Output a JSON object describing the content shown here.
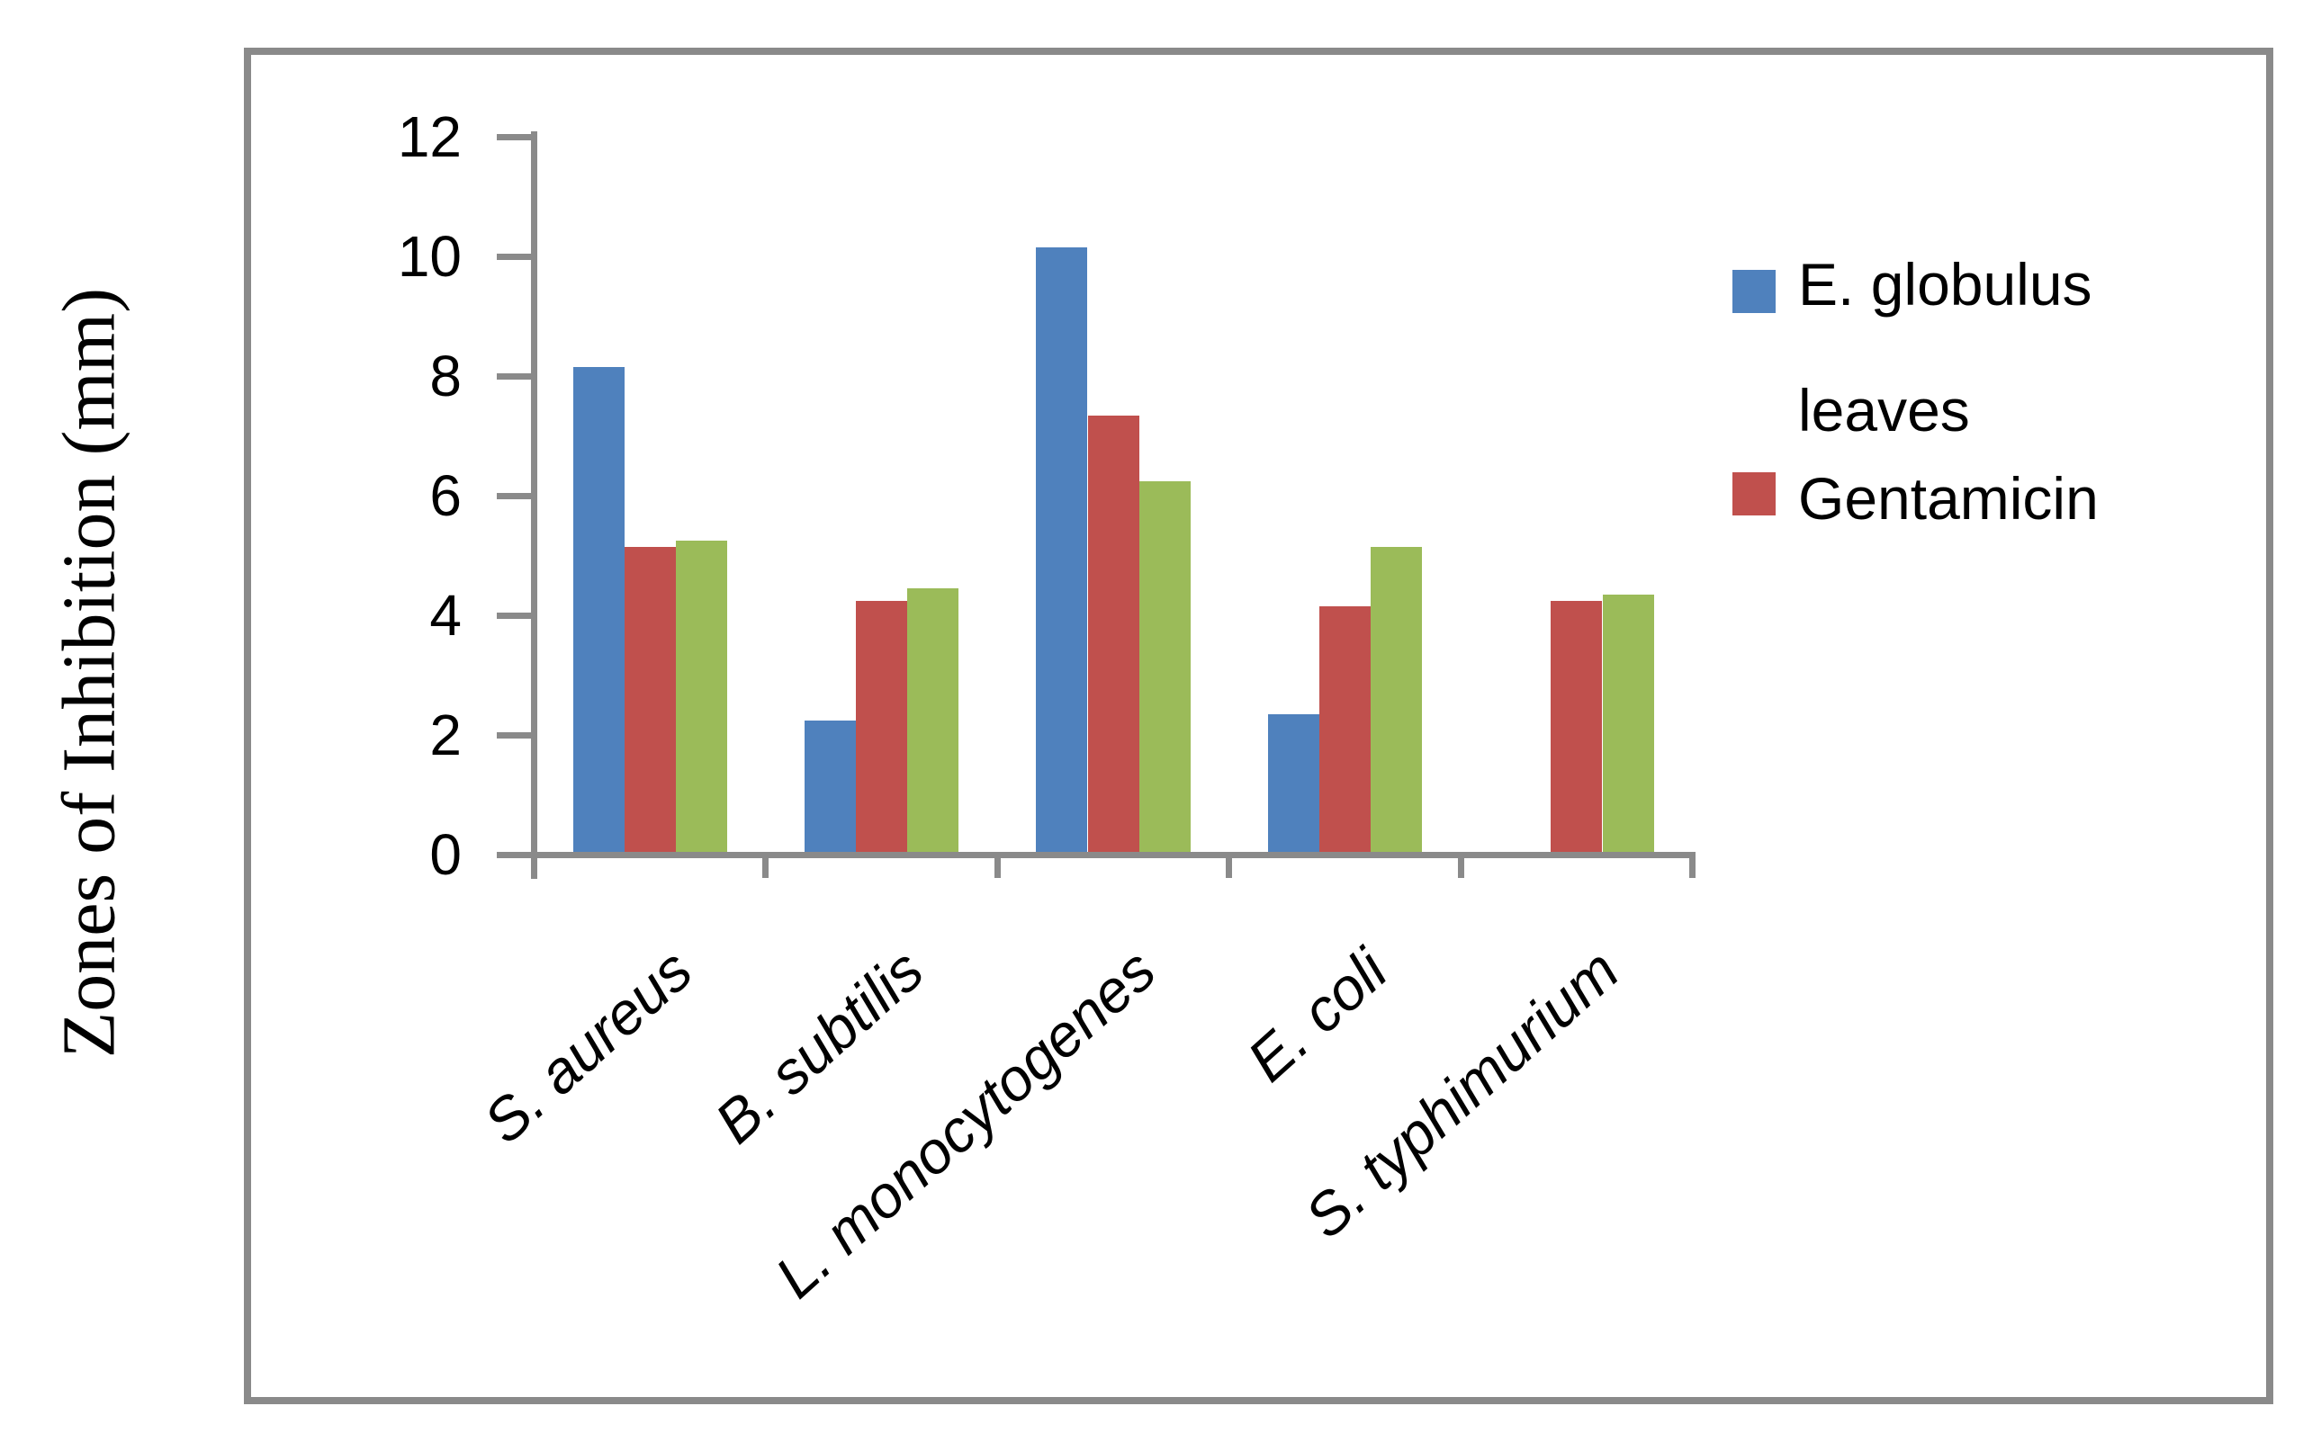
{
  "chart_data": {
    "type": "bar",
    "title": "",
    "xlabel": "",
    "ylabel": "Zones of Inhibition (mm)",
    "ylim": [
      0,
      12
    ],
    "ytick_step": 2,
    "yticks": [
      "12",
      "10",
      "8",
      "6",
      "4",
      "2",
      "0"
    ],
    "ytick_values": [
      12,
      10,
      8,
      6,
      4,
      2,
      0
    ],
    "grid": false,
    "legend_position": "right",
    "categories": [
      "S. aureus",
      "B. subtilis",
      "L. monocytogenes",
      "E. coli",
      "S. typhimurium"
    ],
    "series": [
      {
        "name": "E. globulus leaves",
        "color": "#4F81BD",
        "values": [
          8.1,
          2.2,
          10.1,
          2.3,
          0
        ]
      },
      {
        "name": "Gentamicin",
        "color": "#C0504D",
        "values": [
          5.1,
          4.2,
          7.3,
          4.1,
          4.2
        ]
      },
      {
        "name": "",
        "color": "#9BBB59",
        "values": [
          5.2,
          4.4,
          6.2,
          5.1,
          4.3
        ]
      }
    ],
    "legend_visible_entries": [
      "E. globulus leaves",
      "Gentamicin"
    ]
  },
  "colors": {
    "axis": "#8a8a8a",
    "frame": "#8a8a8a",
    "text": "#000000",
    "background": "#ffffff"
  }
}
